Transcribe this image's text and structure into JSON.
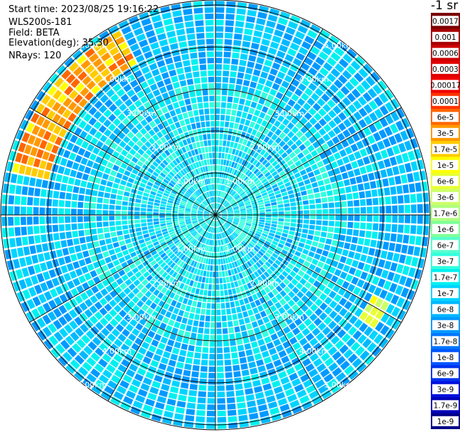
{
  "header": {
    "start_time": "Start time: 2023/08/25 19:16:22",
    "instrument": "WLS200s-181",
    "field": "Field: BETA",
    "elevation": "Elevation(deg): 35.30",
    "nrays": "NRays: 120"
  },
  "colorbar": {
    "title": "-1 sr",
    "ticks": [
      "0.0017",
      "0.001",
      "0.0006",
      "0.0003",
      "0.00017",
      "0.0001",
      "6e-5",
      "3e-5",
      "1.7e-5",
      "1e-5",
      "6e-6",
      "3e-6",
      "1.7e-6",
      "1e-6",
      "6e-7",
      "3e-7",
      "1.7e-7",
      "1e-7",
      "6e-8",
      "3e-8",
      "1.7e-8",
      "1e-8",
      "6e-9",
      "3e-9",
      "1.7e-9",
      "1e-9"
    ],
    "colors": [
      "#7a0000",
      "#a80000",
      "#cc0000",
      "#e00000",
      "#f00000",
      "#ff3300",
      "#ff6600",
      "#ff9900",
      "#ffcc00",
      "#ffff00",
      "#e8ff33",
      "#ccff66",
      "#b0ff80",
      "#80ff99",
      "#55ffcc",
      "#33ffdd",
      "#00f0f0",
      "#00d4ff",
      "#00b8ff",
      "#0099ff",
      "#0077ff",
      "#0055ff",
      "#0033ee",
      "#0011dd",
      "#0000bb",
      "#000088"
    ]
  },
  "chart_data": {
    "type": "polar-heatmap",
    "field": "BETA",
    "nrays": 120,
    "range_unit": "km",
    "range_max_km": 5.0,
    "range_labels": [
      "1.00km",
      "2.00km",
      "3.00km",
      "4.00km",
      "5.00km"
    ],
    "ring_ranges_km": [
      1,
      2,
      3,
      4,
      5
    ],
    "spoke_angles_deg": [
      0,
      30,
      60,
      90,
      120,
      150,
      180,
      210,
      240,
      270,
      300,
      330
    ],
    "colormap_range": [
      1e-09,
      0.0017
    ],
    "dominant_value_range": [
      3e-08,
      3e-07
    ],
    "high_value_arcs": [
      {
        "azimuth_deg": [
          280,
          330
        ],
        "range_km": [
          4.0,
          5.0
        ],
        "values": [
          1e-05,
          6e-05
        ]
      },
      {
        "azimuth_deg": [
          115,
          125
        ],
        "range_km": [
          4.2,
          4.6
        ],
        "values": [
          3e-06,
          1e-05
        ]
      }
    ]
  }
}
